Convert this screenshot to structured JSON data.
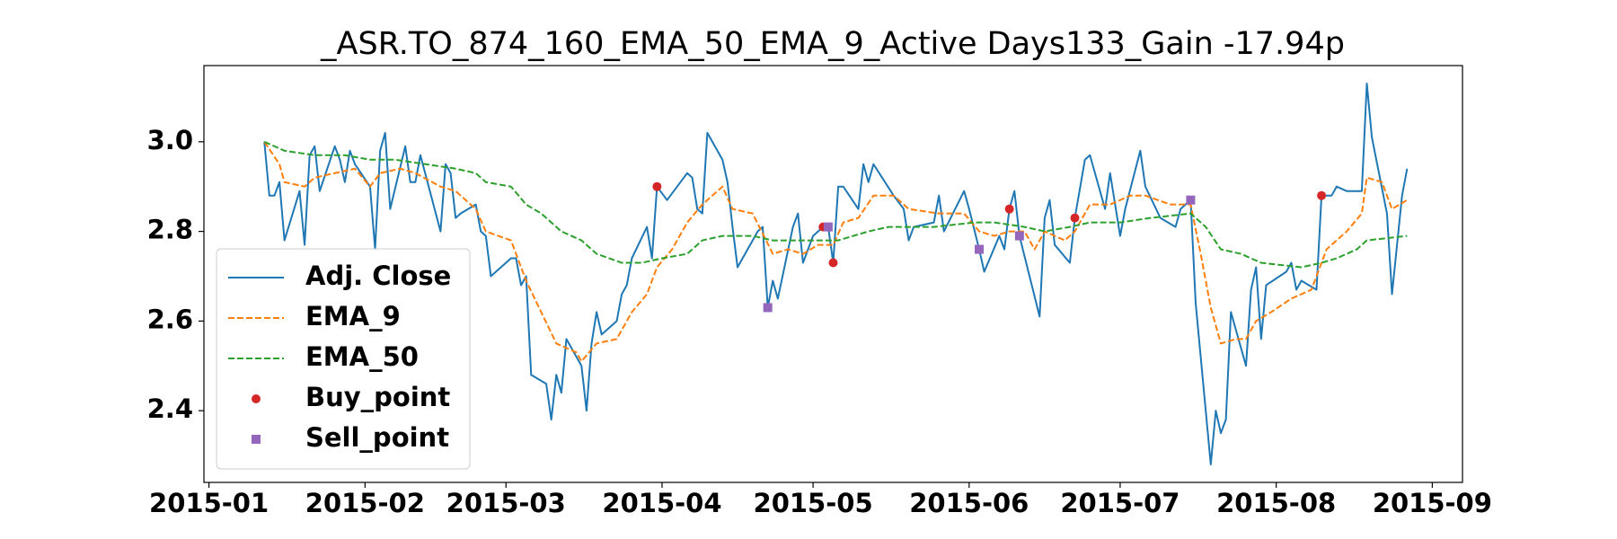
{
  "chart_data": {
    "type": "line",
    "title": "_ASR.TO_874_160_EMA_50_EMA_9_Active Days133_Gain -17.94p",
    "xlim": [
      "2014-12-31",
      "2015-09-07"
    ],
    "ylim": [
      2.24,
      3.17
    ],
    "xticks": [
      {
        "value": "2015-01-01",
        "label": "2015-01"
      },
      {
        "value": "2015-02-01",
        "label": "2015-02"
      },
      {
        "value": "2015-03-01",
        "label": "2015-03"
      },
      {
        "value": "2015-04-01",
        "label": "2015-04"
      },
      {
        "value": "2015-05-01",
        "label": "2015-05"
      },
      {
        "value": "2015-06-01",
        "label": "2015-06"
      },
      {
        "value": "2015-07-01",
        "label": "2015-07"
      },
      {
        "value": "2015-08-01",
        "label": "2015-08"
      },
      {
        "value": "2015-09-01",
        "label": "2015-09"
      }
    ],
    "yticks": [
      2.4,
      2.6,
      2.8,
      {
        "value": 3,
        "label": "3.0"
      }
    ],
    "grid": false,
    "legend": "lower left",
    "series": [
      {
        "name": "Adj. Close",
        "color": "#1f77b4",
        "style": "solid",
        "x": [
          "2015-01-12",
          "2015-01-13",
          "2015-01-14",
          "2015-01-15",
          "2015-01-16",
          "2015-01-19",
          "2015-01-20",
          "2015-01-21",
          "2015-01-22",
          "2015-01-23",
          "2015-01-26",
          "2015-01-27",
          "2015-01-28",
          "2015-01-29",
          "2015-01-30",
          "2015-02-02",
          "2015-02-03",
          "2015-02-04",
          "2015-02-05",
          "2015-02-06",
          "2015-02-09",
          "2015-02-10",
          "2015-02-11",
          "2015-02-12",
          "2015-02-16",
          "2015-02-17",
          "2015-02-18",
          "2015-02-19",
          "2015-02-20",
          "2015-02-23",
          "2015-02-24",
          "2015-02-25",
          "2015-02-26",
          "2015-03-02",
          "2015-03-03",
          "2015-03-04",
          "2015-03-05",
          "2015-03-06",
          "2015-03-09",
          "2015-03-10",
          "2015-03-11",
          "2015-03-12",
          "2015-03-13",
          "2015-03-16",
          "2015-03-17",
          "2015-03-18",
          "2015-03-19",
          "2015-03-20",
          "2015-03-23",
          "2015-03-24",
          "2015-03-25",
          "2015-03-26",
          "2015-03-29",
          "2015-03-30",
          "2015-03-31",
          "2015-04-02",
          "2015-04-06",
          "2015-04-07",
          "2015-04-08",
          "2015-04-09",
          "2015-04-10",
          "2015-04-13",
          "2015-04-14",
          "2015-04-15",
          "2015-04-16",
          "2015-04-20",
          "2015-04-21",
          "2015-04-22",
          "2015-04-23",
          "2015-04-24",
          "2015-04-27",
          "2015-04-28",
          "2015-04-29",
          "2015-05-01",
          "2015-05-03",
          "2015-05-04",
          "2015-05-05",
          "2015-05-06",
          "2015-05-07",
          "2015-05-10",
          "2015-05-11",
          "2015-05-12",
          "2015-05-13",
          "2015-05-17",
          "2015-05-19",
          "2015-05-20",
          "2015-05-21",
          "2015-05-25",
          "2015-05-26",
          "2015-05-27",
          "2015-05-31",
          "2015-06-01",
          "2015-06-03",
          "2015-06-04",
          "2015-06-07",
          "2015-06-08",
          "2015-06-09",
          "2015-06-10",
          "2015-06-11",
          "2015-06-13",
          "2015-06-15",
          "2015-06-16",
          "2015-06-17",
          "2015-06-18",
          "2015-06-21",
          "2015-06-22",
          "2015-06-24",
          "2015-06-25",
          "2015-06-28",
          "2015-06-29",
          "2015-07-01",
          "2015-07-02",
          "2015-07-05",
          "2015-07-06",
          "2015-07-09",
          "2015-07-12",
          "2015-07-13",
          "2015-07-15",
          "2015-07-16",
          "2015-07-19",
          "2015-07-20",
          "2015-07-21",
          "2015-07-22",
          "2015-07-23",
          "2015-07-26",
          "2015-07-27",
          "2015-07-28",
          "2015-07-29",
          "2015-07-30",
          "2015-08-03",
          "2015-08-04",
          "2015-08-05",
          "2015-08-06",
          "2015-08-09",
          "2015-08-10",
          "2015-08-12",
          "2015-08-13",
          "2015-08-15",
          "2015-08-18",
          "2015-08-19",
          "2015-08-20",
          "2015-08-23",
          "2015-08-24",
          "2015-08-26",
          "2015-08-27"
        ],
        "values": [
          3.0,
          2.88,
          2.88,
          2.91,
          2.78,
          2.89,
          2.77,
          2.97,
          2.99,
          2.89,
          2.99,
          2.96,
          2.91,
          2.98,
          2.95,
          2.9,
          2.76,
          2.98,
          3.02,
          2.85,
          2.99,
          2.91,
          2.91,
          2.97,
          2.8,
          2.95,
          2.93,
          2.83,
          2.84,
          2.86,
          2.8,
          2.79,
          2.7,
          2.74,
          2.74,
          2.68,
          2.7,
          2.48,
          2.46,
          2.38,
          2.48,
          2.44,
          2.56,
          2.5,
          2.4,
          2.55,
          2.62,
          2.57,
          2.6,
          2.66,
          2.68,
          2.74,
          2.81,
          2.74,
          2.9,
          2.87,
          2.93,
          2.92,
          2.85,
          2.84,
          3.02,
          2.96,
          2.91,
          2.81,
          2.72,
          2.8,
          2.81,
          2.63,
          2.69,
          2.65,
          2.81,
          2.84,
          2.73,
          2.79,
          2.81,
          2.81,
          2.73,
          2.9,
          2.9,
          2.85,
          2.95,
          2.91,
          2.95,
          2.88,
          2.85,
          2.78,
          2.81,
          2.82,
          2.88,
          2.8,
          2.89,
          2.85,
          2.76,
          2.71,
          2.79,
          2.76,
          2.85,
          2.89,
          2.79,
          2.7,
          2.61,
          2.83,
          2.87,
          2.77,
          2.73,
          2.83,
          2.96,
          2.97,
          2.85,
          2.93,
          2.79,
          2.85,
          2.98,
          2.9,
          2.83,
          2.81,
          2.85,
          2.87,
          2.64,
          2.28,
          2.4,
          2.35,
          2.38,
          2.62,
          2.5,
          2.67,
          2.72,
          2.56,
          2.68,
          2.71,
          2.73,
          2.67,
          2.69,
          2.67,
          2.88,
          2.88,
          2.9,
          2.89,
          2.89,
          3.13,
          3.01,
          2.84,
          2.66,
          2.88,
          2.94
        ]
      },
      {
        "name": "EMA_9",
        "color": "#ff7f0e",
        "style": "dashed",
        "x": [
          "2015-01-12",
          "2015-01-15",
          "2015-01-16",
          "2015-01-20",
          "2015-01-22",
          "2015-01-26",
          "2015-01-30",
          "2015-02-02",
          "2015-02-04",
          "2015-02-08",
          "2015-02-11",
          "2015-02-16",
          "2015-02-19",
          "2015-02-23",
          "2015-02-25",
          "2015-03-02",
          "2015-03-03",
          "2015-03-05",
          "2015-03-08",
          "2015-03-11",
          "2015-03-13",
          "2015-03-15",
          "2015-03-16",
          "2015-03-19",
          "2015-03-23",
          "2015-03-26",
          "2015-03-29",
          "2015-03-31",
          "2015-04-03",
          "2015-04-06",
          "2015-04-09",
          "2015-04-13",
          "2015-04-15",
          "2015-04-19",
          "2015-04-23",
          "2015-04-26",
          "2015-04-29",
          "2015-05-02",
          "2015-05-05",
          "2015-05-07",
          "2015-05-10",
          "2015-05-13",
          "2015-05-17",
          "2015-05-20",
          "2015-05-26",
          "2015-05-31",
          "2015-06-03",
          "2015-06-06",
          "2015-06-09",
          "2015-06-12",
          "2015-06-14",
          "2015-06-16",
          "2015-06-20",
          "2015-06-22",
          "2015-06-25",
          "2015-06-29",
          "2015-07-03",
          "2015-07-06",
          "2015-07-11",
          "2015-07-15",
          "2015-07-17",
          "2015-07-19",
          "2015-07-21",
          "2015-07-24",
          "2015-07-26",
          "2015-07-28",
          "2015-07-31",
          "2015-08-04",
          "2015-08-08",
          "2015-08-11",
          "2015-08-15",
          "2015-08-18",
          "2015-08-19",
          "2015-08-22",
          "2015-08-24",
          "2015-08-27"
        ],
        "values": [
          3.0,
          2.95,
          2.91,
          2.9,
          2.92,
          2.93,
          2.94,
          2.9,
          2.93,
          2.94,
          2.93,
          2.9,
          2.89,
          2.85,
          2.8,
          2.78,
          2.75,
          2.69,
          2.62,
          2.55,
          2.54,
          2.53,
          2.51,
          2.55,
          2.56,
          2.62,
          2.66,
          2.72,
          2.76,
          2.82,
          2.86,
          2.9,
          2.85,
          2.84,
          2.75,
          2.76,
          2.75,
          2.77,
          2.77,
          2.82,
          2.83,
          2.88,
          2.88,
          2.85,
          2.84,
          2.84,
          2.8,
          2.79,
          2.8,
          2.8,
          2.76,
          2.8,
          2.78,
          2.8,
          2.86,
          2.86,
          2.88,
          2.88,
          2.86,
          2.86,
          2.75,
          2.63,
          2.55,
          2.56,
          2.56,
          2.6,
          2.62,
          2.65,
          2.67,
          2.76,
          2.8,
          2.84,
          2.92,
          2.91,
          2.85,
          2.87
        ]
      },
      {
        "name": "EMA_50",
        "color": "#2ca02c",
        "style": "dashed",
        "x": [
          "2015-01-12",
          "2015-01-16",
          "2015-01-22",
          "2015-01-28",
          "2015-02-02",
          "2015-02-07",
          "2015-02-13",
          "2015-02-19",
          "2015-02-23",
          "2015-02-25",
          "2015-03-02",
          "2015-03-05",
          "2015-03-08",
          "2015-03-12",
          "2015-03-16",
          "2015-03-19",
          "2015-03-24",
          "2015-03-28",
          "2015-04-01",
          "2015-04-06",
          "2015-04-09",
          "2015-04-13",
          "2015-04-19",
          "2015-04-23",
          "2015-04-30",
          "2015-05-06",
          "2015-05-12",
          "2015-05-16",
          "2015-05-25",
          "2015-06-02",
          "2015-06-06",
          "2015-06-12",
          "2015-06-16",
          "2015-06-21",
          "2015-06-25",
          "2015-07-01",
          "2015-07-07",
          "2015-07-15",
          "2015-07-18",
          "2015-07-21",
          "2015-07-25",
          "2015-07-29",
          "2015-08-06",
          "2015-08-10",
          "2015-08-13",
          "2015-08-17",
          "2015-08-19",
          "2015-08-27"
        ],
        "values": [
          3.0,
          2.98,
          2.97,
          2.97,
          2.96,
          2.96,
          2.95,
          2.94,
          2.93,
          2.91,
          2.9,
          2.86,
          2.84,
          2.8,
          2.78,
          2.75,
          2.73,
          2.73,
          2.74,
          2.75,
          2.78,
          2.79,
          2.79,
          2.78,
          2.78,
          2.78,
          2.8,
          2.81,
          2.81,
          2.82,
          2.82,
          2.81,
          2.8,
          2.81,
          2.82,
          2.82,
          2.83,
          2.84,
          2.81,
          2.76,
          2.75,
          2.73,
          2.72,
          2.73,
          2.74,
          2.76,
          2.78,
          2.79
        ]
      },
      {
        "name": "Buy_point",
        "color": "#d62728",
        "style": "circle",
        "x": [
          "2015-03-31",
          "2015-05-03",
          "2015-05-05",
          "2015-06-09",
          "2015-06-22",
          "2015-08-10"
        ],
        "values": [
          2.9,
          2.81,
          2.73,
          2.85,
          2.83,
          2.88
        ]
      },
      {
        "name": "Sell_point",
        "color": "#9467bd",
        "style": "square",
        "x": [
          "2015-04-22",
          "2015-05-04",
          "2015-06-03",
          "2015-06-11",
          "2015-07-15"
        ],
        "values": [
          2.63,
          2.81,
          2.76,
          2.79,
          2.87
        ]
      }
    ]
  }
}
